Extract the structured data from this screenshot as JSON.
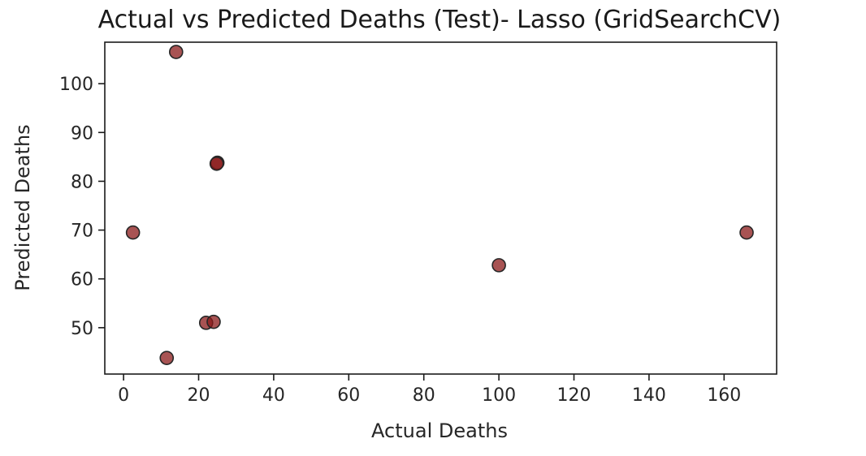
{
  "chart_data": {
    "type": "scatter",
    "title": "Actual vs Predicted Deaths (Test)- Lasso (GridSearchCV)",
    "xlabel": "Actual Deaths",
    "ylabel": "Predicted Deaths",
    "xlim": [
      -5,
      174
    ],
    "ylim": [
      40.5,
      108.5
    ],
    "xticks": [
      0,
      20,
      40,
      60,
      80,
      100,
      120,
      140,
      160
    ],
    "yticks": [
      50,
      60,
      70,
      80,
      90,
      100
    ],
    "grid": false,
    "legend": "none",
    "marker_color": "#8b1a1a",
    "marker_edge_color": "#262626",
    "marker_alpha": 0.75,
    "points": [
      {
        "x": 14,
        "y": 106.5
      },
      {
        "x": 25,
        "y": 83.8
      },
      {
        "x": 24.8,
        "y": 83.6
      },
      {
        "x": 2.5,
        "y": 69.5
      },
      {
        "x": 166,
        "y": 69.5
      },
      {
        "x": 100,
        "y": 62.8
      },
      {
        "x": 22,
        "y": 51
      },
      {
        "x": 24,
        "y": 51.2
      },
      {
        "x": 11.5,
        "y": 43.8
      }
    ]
  }
}
